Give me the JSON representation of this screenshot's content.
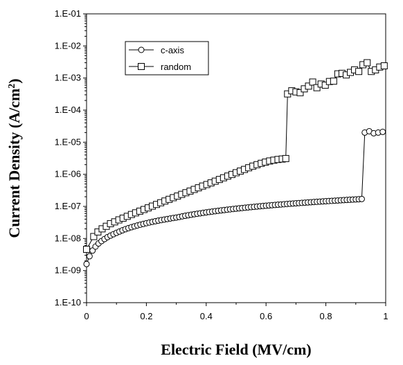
{
  "chart_data": {
    "type": "scatter",
    "title": "",
    "xlabel": "Electric Field (MV/cm)",
    "ylabel": "Current  Density (A/cm",
    "ylabel_superscript": "2",
    "ylabel_suffix": ")",
    "xlim": [
      0,
      1
    ],
    "ylim": [
      1e-10,
      0.1
    ],
    "y_scale": "log",
    "grid": false,
    "legend_position": "top-left",
    "x_ticks": [
      "0",
      "0.2",
      "0.4",
      "0.6",
      "0.8",
      "1"
    ],
    "x_tick_values": [
      0,
      0.2,
      0.4,
      0.6,
      0.8,
      1
    ],
    "y_ticks": [
      "1.E-01",
      "1.E-02",
      "1.E-03",
      "1.E-04",
      "1.E-05",
      "1.E-06",
      "1.E-07",
      "1.E-08",
      "1.E-09",
      "1.E-10"
    ],
    "y_tick_values": [
      0.1,
      0.01,
      0.001,
      0.0001,
      1e-05,
      1e-06,
      1e-07,
      1e-08,
      1e-09,
      1e-10
    ],
    "series": [
      {
        "name": "c-axis",
        "marker": "circle",
        "x": [
          0.0,
          0.01,
          0.02,
          0.03,
          0.04,
          0.05,
          0.06,
          0.07,
          0.08,
          0.09,
          0.1,
          0.11,
          0.12,
          0.13,
          0.14,
          0.15,
          0.16,
          0.17,
          0.18,
          0.19,
          0.2,
          0.21,
          0.22,
          0.23,
          0.24,
          0.25,
          0.26,
          0.27,
          0.28,
          0.29,
          0.3,
          0.31,
          0.32,
          0.33,
          0.34,
          0.35,
          0.36,
          0.37,
          0.38,
          0.39,
          0.4,
          0.41,
          0.42,
          0.43,
          0.44,
          0.45,
          0.46,
          0.47,
          0.48,
          0.49,
          0.5,
          0.51,
          0.52,
          0.53,
          0.54,
          0.55,
          0.56,
          0.57,
          0.58,
          0.59,
          0.6,
          0.61,
          0.62,
          0.63,
          0.64,
          0.65,
          0.66,
          0.67,
          0.68,
          0.69,
          0.7,
          0.71,
          0.72,
          0.73,
          0.74,
          0.75,
          0.76,
          0.77,
          0.78,
          0.79,
          0.8,
          0.81,
          0.82,
          0.83,
          0.84,
          0.85,
          0.86,
          0.87,
          0.88,
          0.89,
          0.9,
          0.91,
          0.92,
          0.93,
          0.945,
          0.96,
          0.975,
          0.99
        ],
        "y": [
          1.6e-09,
          2.8e-09,
          4.2e-09,
          5.6e-09,
          7e-09,
          8.3e-09,
          9.6e-09,
          1.1e-08,
          1.23e-08,
          1.36e-08,
          1.5e-08,
          1.65e-08,
          1.8e-08,
          1.95e-08,
          2.1e-08,
          2.25e-08,
          2.4e-08,
          2.55e-08,
          2.7e-08,
          2.85e-08,
          3e-08,
          3.15e-08,
          3.3e-08,
          3.45e-08,
          3.6e-08,
          3.75e-08,
          3.9e-08,
          4.05e-08,
          4.2e-08,
          4.35e-08,
          4.5e-08,
          4.7e-08,
          4.9e-08,
          5.1e-08,
          5.3e-08,
          5.5e-08,
          5.7e-08,
          5.9e-08,
          6.1e-08,
          6.3e-08,
          6.5e-08,
          6.7e-08,
          6.9e-08,
          7.1e-08,
          7.3e-08,
          7.5e-08,
          7.7e-08,
          7.9e-08,
          8.1e-08,
          8.3e-08,
          8.5e-08,
          8.7e-08,
          8.9e-08,
          9.1e-08,
          9.3e-08,
          9.5e-08,
          9.7e-08,
          9.9e-08,
          1.01e-07,
          1.03e-07,
          1.05e-07,
          1.07e-07,
          1.09e-07,
          1.11e-07,
          1.13e-07,
          1.15e-07,
          1.17e-07,
          1.19e-07,
          1.21e-07,
          1.23e-07,
          1.25e-07,
          1.27e-07,
          1.29e-07,
          1.31e-07,
          1.33e-07,
          1.35e-07,
          1.37e-07,
          1.39e-07,
          1.41e-07,
          1.43e-07,
          1.45e-07,
          1.47e-07,
          1.49e-07,
          1.51e-07,
          1.53e-07,
          1.55e-07,
          1.57e-07,
          1.59e-07,
          1.61e-07,
          1.63e-07,
          1.65e-07,
          1.67e-07,
          1.7e-07,
          2e-05,
          2.2e-05,
          1.9e-05,
          2e-05,
          2.1e-05
        ]
      },
      {
        "name": "random",
        "marker": "square",
        "x": [
          0.0,
          0.024,
          0.038,
          0.052,
          0.066,
          0.08,
          0.094,
          0.108,
          0.122,
          0.136,
          0.15,
          0.164,
          0.178,
          0.192,
          0.206,
          0.22,
          0.234,
          0.248,
          0.262,
          0.276,
          0.29,
          0.304,
          0.318,
          0.332,
          0.346,
          0.36,
          0.374,
          0.388,
          0.402,
          0.416,
          0.43,
          0.444,
          0.458,
          0.472,
          0.486,
          0.5,
          0.514,
          0.528,
          0.542,
          0.556,
          0.57,
          0.584,
          0.598,
          0.612,
          0.626,
          0.64,
          0.654,
          0.666,
          0.672,
          0.686,
          0.7,
          0.714,
          0.728,
          0.742,
          0.756,
          0.77,
          0.784,
          0.798,
          0.812,
          0.826,
          0.84,
          0.854,
          0.868,
          0.882,
          0.896,
          0.91,
          0.924,
          0.938,
          0.952,
          0.966,
          0.98,
          0.995
        ],
        "y": [
          4.6e-09,
          1.15e-08,
          1.6e-08,
          2e-08,
          2.4e-08,
          2.9e-08,
          3.3e-08,
          3.8e-08,
          4.3e-08,
          4.9e-08,
          5.6e-08,
          6.3e-08,
          7.1e-08,
          8e-08,
          9e-08,
          1.02e-07,
          1.15e-07,
          1.3e-07,
          1.47e-07,
          1.66e-07,
          1.87e-07,
          2.1e-07,
          2.37e-07,
          2.67e-07,
          3e-07,
          3.38e-07,
          3.8e-07,
          4.3e-07,
          4.8e-07,
          5.4e-07,
          6.1e-07,
          6.9e-07,
          7.8e-07,
          8.8e-07,
          9.9e-07,
          1.12e-06,
          1.26e-06,
          1.42e-06,
          1.6e-06,
          1.8e-06,
          2e-06,
          2.2e-06,
          2.4e-06,
          2.6e-06,
          2.75e-06,
          2.9e-06,
          3e-06,
          3.1e-06,
          0.00032,
          0.0004,
          0.00037,
          0.00035,
          0.00046,
          0.00056,
          0.00075,
          0.0005,
          0.00065,
          0.0006,
          0.00078,
          0.0008,
          0.00135,
          0.0014,
          0.00125,
          0.0015,
          0.0018,
          0.0016,
          0.0026,
          0.003,
          0.0016,
          0.0018,
          0.0022,
          0.0024
        ]
      }
    ]
  }
}
